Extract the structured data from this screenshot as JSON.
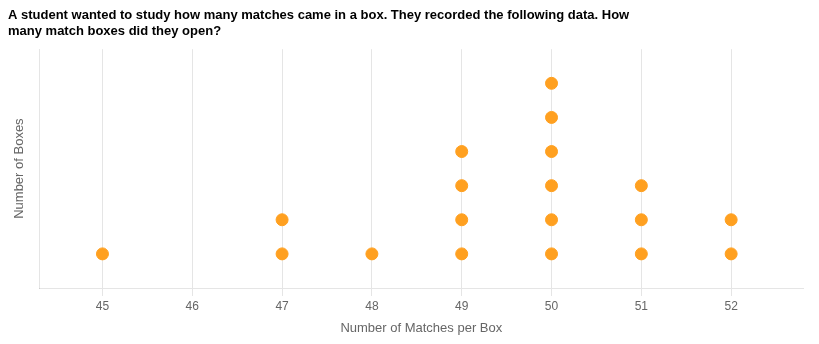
{
  "chart_data": {
    "type": "dot",
    "title": "A student wanted to study how many matches came in a box. They recorded the following data. How\nmany match boxes did they open?",
    "xlabel": "Number of Matches per Box",
    "ylabel": "Number of Boxes",
    "x": [
      45,
      46,
      47,
      48,
      49,
      50,
      51,
      52
    ],
    "values": [
      1,
      0,
      2,
      1,
      4,
      6,
      3,
      2
    ],
    "color": "#FFA020",
    "xlim": [
      44.3,
      52.8
    ],
    "xticks": [
      45,
      46,
      47,
      48,
      49,
      50,
      51,
      52
    ],
    "ylim": [
      0,
      7
    ],
    "grid": true,
    "tick_labels": "x"
  }
}
